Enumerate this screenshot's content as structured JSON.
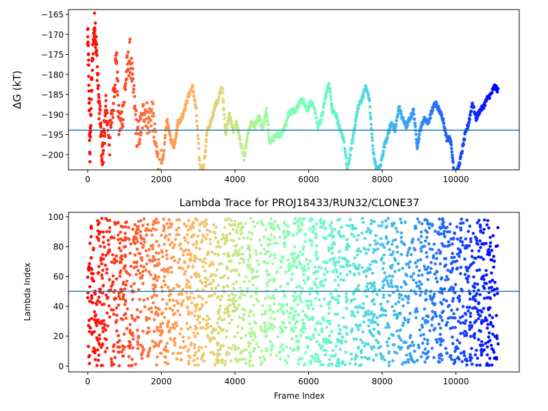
{
  "chart_data": [
    {
      "type": "scatter",
      "title": "",
      "xlabel": "",
      "ylabel": "ΔG (kT)",
      "xlim": [
        -520,
        11720
      ],
      "ylim": [
        -203.8,
        -163.8
      ],
      "xticks": [
        0,
        2000,
        4000,
        6000,
        8000,
        10000
      ],
      "xtick_labels": [
        "0",
        "2000",
        "4000",
        "6000",
        "8000",
        "10000"
      ],
      "yticks": [
        -200,
        -195,
        -190,
        -185,
        -180,
        -175,
        -170,
        -165
      ],
      "ytick_labels": [
        "−200",
        "−195",
        "−190",
        "−185",
        "−180",
        "−175",
        "−170",
        "−165"
      ],
      "hline": -193.9,
      "hline_color": "#1f77b4",
      "colormap": "rainbow (red at frame 0 to violet at last frame)",
      "grid": false,
      "legend": "none",
      "series": [
        {
          "x": [
            0,
            30,
            60,
            100,
            150,
            200,
            250,
            300,
            350,
            400,
            450,
            500,
            600,
            700,
            780,
            850,
            950,
            1050,
            1150,
            1250,
            1350,
            1450,
            1550,
            1650,
            1750,
            1850,
            1950,
            2050,
            2150,
            2250,
            2350,
            2450,
            2550,
            2650,
            2750,
            2850,
            2950,
            3050,
            3150,
            3250,
            3350,
            3450,
            3550,
            3650,
            3750,
            3850,
            3950,
            4050,
            4150,
            4250,
            4350,
            4450,
            4550,
            4650,
            4750,
            4850,
            4950,
            5050,
            5150,
            5250,
            5350,
            5450,
            5550,
            5650,
            5750,
            5850,
            5950,
            6050,
            6150,
            6250,
            6350,
            6450,
            6550,
            6650,
            6750,
            6850,
            6950,
            7050,
            7150,
            7250,
            7350,
            7450,
            7550,
            7650,
            7750,
            7850,
            7950,
            8050,
            8150,
            8250,
            8350,
            8450,
            8550,
            8650,
            8750,
            8850,
            8950,
            9050,
            9150,
            9250,
            9350,
            9450,
            9550,
            9650,
            9750,
            9850,
            9950,
            10050,
            10150,
            10250,
            10350,
            10450,
            10550,
            10650,
            10750,
            10850,
            10950,
            11050,
            11150
          ],
          "y": [
            -170,
            -180,
            -200,
            -185,
            -172,
            -167,
            -176,
            -186,
            -193,
            -201,
            -195,
            -188,
            -197,
            -186,
            -175,
            -193,
            -190,
            -180,
            -175,
            -185,
            -196,
            -193,
            -188,
            -192,
            -189,
            -198,
            -204,
            -201,
            -191,
            -196,
            -198,
            -192,
            -191,
            -188,
            -185,
            -183,
            -189,
            -204,
            -203,
            -194,
            -192,
            -188,
            -186,
            -183,
            -195,
            -190,
            -194,
            -192,
            -197,
            -201,
            -195,
            -192,
            -193,
            -190,
            -194,
            -189,
            -197,
            -196,
            -195,
            -195,
            -193,
            -190,
            -189,
            -189,
            -187,
            -186,
            -189,
            -187,
            -188,
            -193,
            -191,
            -186,
            -182,
            -189,
            -190,
            -194,
            -196,
            -204,
            -199,
            -193,
            -188,
            -186,
            -183,
            -186,
            -199,
            -204,
            -203,
            -198,
            -195,
            -192,
            -194,
            -188,
            -191,
            -193,
            -191,
            -189,
            -198,
            -193,
            -191,
            -192,
            -189,
            -187,
            -189,
            -191,
            -196,
            -196,
            -204,
            -204,
            -200,
            -195,
            -192,
            -187,
            -191,
            -189,
            -188,
            -186,
            -185,
            -183,
            -184
          ]
        }
      ]
    },
    {
      "type": "scatter",
      "title": "Lambda Trace for PROJ18433/RUN32/CLONE37",
      "xlabel": "Frame Index",
      "ylabel": "Lambda Index",
      "xlim": [
        -520,
        11720
      ],
      "ylim": [
        -4,
        103
      ],
      "xticks": [
        0,
        2000,
        4000,
        6000,
        8000,
        10000
      ],
      "xtick_labels": [
        "0",
        "2000",
        "4000",
        "6000",
        "8000",
        "10000"
      ],
      "yticks": [
        0,
        20,
        40,
        60,
        80,
        100
      ],
      "ytick_labels": [
        "0",
        "20",
        "40",
        "60",
        "80",
        "100"
      ],
      "hline": 50,
      "hline_color": "#1f77b4",
      "colormap": "rainbow (red at frame 0 to violet at last frame)",
      "grid": false,
      "legend": "none",
      "series": [
        {
          "x_range": [
            0,
            11150
          ],
          "y_range": [
            0,
            99
          ],
          "description_density": "dense near-uniform scatter of lambda index between 0 and 99 across all frames"
        }
      ]
    }
  ]
}
